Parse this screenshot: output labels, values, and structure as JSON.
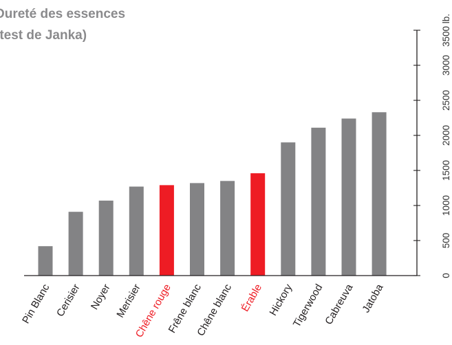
{
  "chart_data": {
    "type": "bar",
    "title": [
      "Dureté des essences",
      "(test de Janka)"
    ],
    "categories": [
      "Pin Blanc",
      "Cerisier",
      "Noyer",
      "Merisier",
      "Chêne rouge",
      "Frêne blanc",
      "Chêne blanc",
      "Érable",
      "Hickory",
      "Tigerwood",
      "Cabreuva",
      "Jatoba"
    ],
    "values": [
      420,
      910,
      1070,
      1270,
      1290,
      1320,
      1350,
      1460,
      1900,
      2110,
      2240,
      2330
    ],
    "highlighted": [
      "Chêne rouge",
      "Érable"
    ],
    "ylim": [
      0,
      3500
    ],
    "yticks": [
      "0",
      "500",
      "1000",
      "1500",
      "2000",
      "2500",
      "3000",
      "3500 lb."
    ],
    "yaxis_position": "right",
    "grid": false,
    "colors": {
      "bar": "#838385",
      "highlight": "#ee1c24",
      "axis": "#231f20",
      "label": "#231f20",
      "title": "#8a8a8c"
    }
  }
}
